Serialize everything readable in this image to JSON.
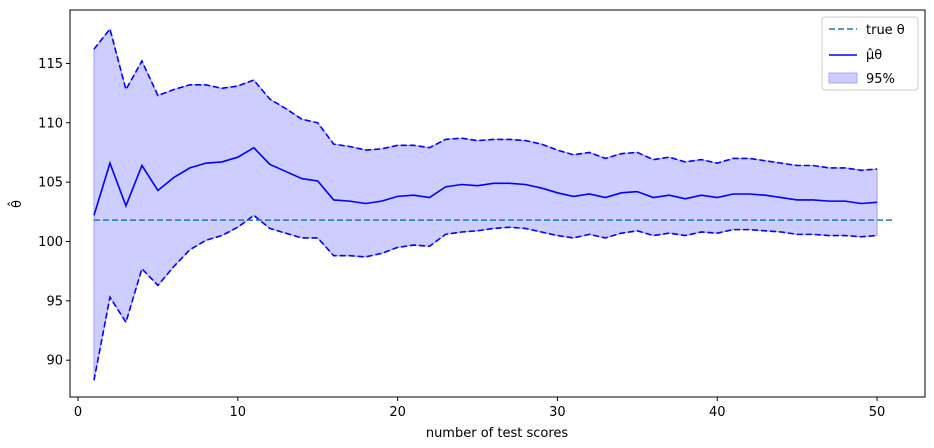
{
  "chart_data": {
    "type": "line",
    "title": "",
    "xlabel": "number of test scores",
    "ylabel": "θ̂",
    "xlim": [
      -0.5,
      53.0
    ],
    "ylim": [
      86.9,
      119.5
    ],
    "xticks": [
      0,
      10,
      20,
      30,
      40,
      50
    ],
    "yticks": [
      90,
      95,
      100,
      105,
      110,
      115
    ],
    "grid": false,
    "legend_position": "top-right",
    "true_theta": {
      "name": "true θ",
      "x": [
        1,
        51
      ],
      "value": 101.8,
      "color": "#1f77b4",
      "style": "dashed"
    },
    "x": [
      1,
      2,
      3,
      4,
      5,
      6,
      7,
      8,
      9,
      10,
      11,
      12,
      13,
      14,
      15,
      16,
      17,
      18,
      19,
      20,
      21,
      22,
      23,
      24,
      25,
      26,
      27,
      28,
      29,
      30,
      31,
      32,
      33,
      34,
      35,
      36,
      37,
      38,
      39,
      40,
      41,
      42,
      43,
      44,
      45,
      46,
      47,
      48,
      49,
      50
    ],
    "series": [
      {
        "name": "μ̂θ",
        "color": "#0000ff",
        "values": [
          102.2,
          106.6,
          103.0,
          106.4,
          104.3,
          105.4,
          106.2,
          106.6,
          106.7,
          107.1,
          107.9,
          106.5,
          105.9,
          105.3,
          105.1,
          103.5,
          103.4,
          103.2,
          103.4,
          103.8,
          103.9,
          103.7,
          104.6,
          104.8,
          104.7,
          104.9,
          104.9,
          104.8,
          104.5,
          104.1,
          103.8,
          104.0,
          103.7,
          104.1,
          104.2,
          103.7,
          103.9,
          103.6,
          103.9,
          103.7,
          104.0,
          104.0,
          103.9,
          103.7,
          103.5,
          103.5,
          103.4,
          103.4,
          103.2,
          103.3
        ]
      }
    ],
    "band": {
      "name": "95%",
      "fill_color": "#b8b8ff",
      "line_color": "#0000ff",
      "upper": [
        116.2,
        117.9,
        112.8,
        115.2,
        112.3,
        112.8,
        113.2,
        113.2,
        112.9,
        113.1,
        113.6,
        112.0,
        111.2,
        110.3,
        110.0,
        108.2,
        108.0,
        107.7,
        107.8,
        108.1,
        108.1,
        107.9,
        108.6,
        108.7,
        108.5,
        108.6,
        108.6,
        108.5,
        108.2,
        107.7,
        107.3,
        107.5,
        107.0,
        107.4,
        107.5,
        106.9,
        107.1,
        106.7,
        106.9,
        106.6,
        107.0,
        107.0,
        106.8,
        106.6,
        106.4,
        106.4,
        106.2,
        106.2,
        106.0,
        106.1
      ],
      "lower": [
        88.3,
        95.3,
        93.2,
        97.7,
        96.3,
        97.9,
        99.3,
        100.1,
        100.5,
        101.2,
        102.2,
        101.1,
        100.7,
        100.3,
        100.3,
        98.8,
        98.8,
        98.7,
        99.0,
        99.5,
        99.7,
        99.6,
        100.6,
        100.8,
        100.9,
        101.1,
        101.2,
        101.1,
        100.8,
        100.5,
        100.3,
        100.6,
        100.3,
        100.7,
        100.9,
        100.5,
        100.7,
        100.5,
        100.8,
        100.7,
        101.0,
        101.0,
        100.9,
        100.8,
        100.6,
        100.6,
        100.5,
        100.5,
        100.4,
        100.5
      ]
    }
  }
}
